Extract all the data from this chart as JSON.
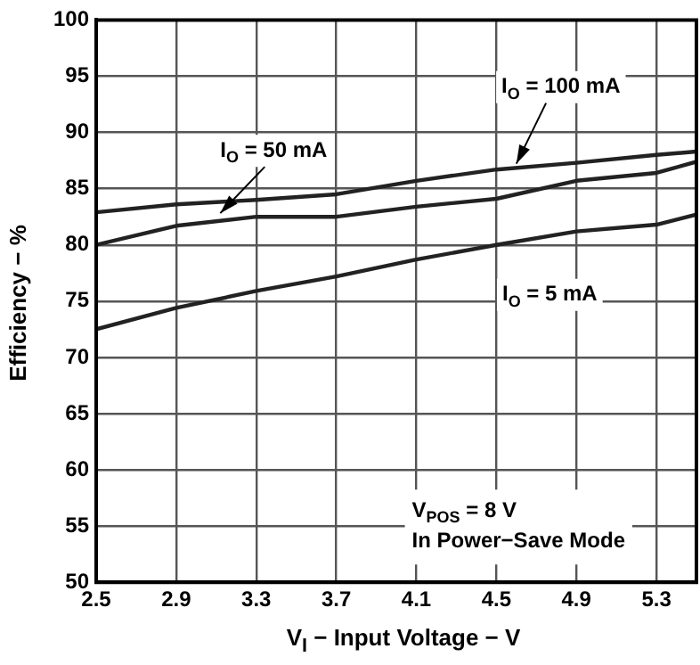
{
  "chart_data": {
    "type": "line",
    "xlabel": "V$_{I}$ − Input Voltage − V",
    "ylabel": "Efficiency − %",
    "xlim": [
      2.5,
      5.5
    ],
    "xticks": [
      2.5,
      2.9,
      3.3,
      3.7,
      4.1,
      4.5,
      4.9,
      5.3
    ],
    "ylim": [
      50,
      100
    ],
    "yticks": [
      50,
      55,
      60,
      65,
      70,
      75,
      80,
      85,
      90,
      95,
      100
    ],
    "grid": true,
    "legend": false,
    "marker": "none",
    "line_style": "solid",
    "x": [
      2.5,
      2.9,
      3.3,
      3.7,
      4.1,
      4.5,
      4.9,
      5.3,
      5.5
    ],
    "series": [
      {
        "color": "#222222",
        "values": [
          82.9,
          83.6,
          84.0,
          84.5,
          85.7,
          86.7,
          87.3,
          88.0,
          88.3
        ]
      },
      {
        "color": "#222222",
        "values": [
          80.0,
          81.7,
          82.5,
          82.5,
          83.4,
          84.1,
          85.7,
          86.4,
          87.4
        ]
      },
      {
        "color": "#222222",
        "values": [
          72.5,
          74.4,
          75.9,
          77.2,
          78.7,
          80.0,
          81.2,
          81.8,
          82.7
        ]
      }
    ],
    "annotations": [
      {
        "text": "I$_{O}$ = 100 mA",
        "x": 4.6,
        "y": 86.9
      },
      {
        "text": "I$_{O}$ = 50 mA",
        "x": 3.12,
        "y": 82.5
      },
      {
        "text": "I$_{O}$ = 5 mA",
        "x": 4.5,
        "y": 80.0
      },
      "V$_{POS}$ = 8 V",
      "In Power−Save Mode"
    ]
  }
}
